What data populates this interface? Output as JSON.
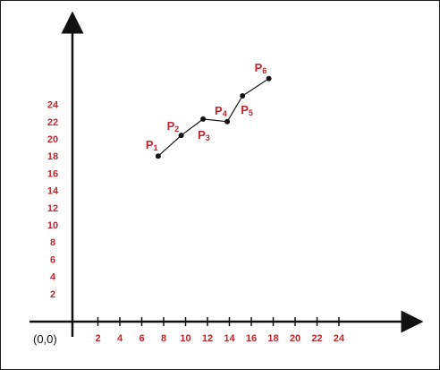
{
  "chart_data": {
    "type": "line",
    "title": "",
    "xlabel": "",
    "ylabel": "",
    "origin_label": "(0,0)",
    "x_ticks": [
      2,
      4,
      6,
      8,
      10,
      12,
      14,
      16,
      18,
      20,
      22,
      24
    ],
    "y_ticks": [
      2,
      4,
      6,
      8,
      10,
      12,
      14,
      16,
      18,
      20,
      22,
      24
    ],
    "xlim": [
      0,
      26
    ],
    "ylim": [
      0,
      28
    ],
    "grid": false,
    "series": [
      {
        "points": [
          {
            "label": "P",
            "sub": "1",
            "x": 7.5,
            "y": 18.0
          },
          {
            "label": "P",
            "sub": "2",
            "x": 9.6,
            "y": 20.4
          },
          {
            "label": "P",
            "sub": "3",
            "x": 11.6,
            "y": 22.3
          },
          {
            "label": "P",
            "sub": "4",
            "x": 13.8,
            "y": 22.0
          },
          {
            "label": "P",
            "sub": "5",
            "x": 15.2,
            "y": 25.0
          },
          {
            "label": "P",
            "sub": "6",
            "x": 17.6,
            "y": 27.0
          }
        ]
      }
    ],
    "colors": {
      "axis": "#111111",
      "labels": "#c0262d",
      "line": "#111111",
      "points": "#111111"
    }
  }
}
